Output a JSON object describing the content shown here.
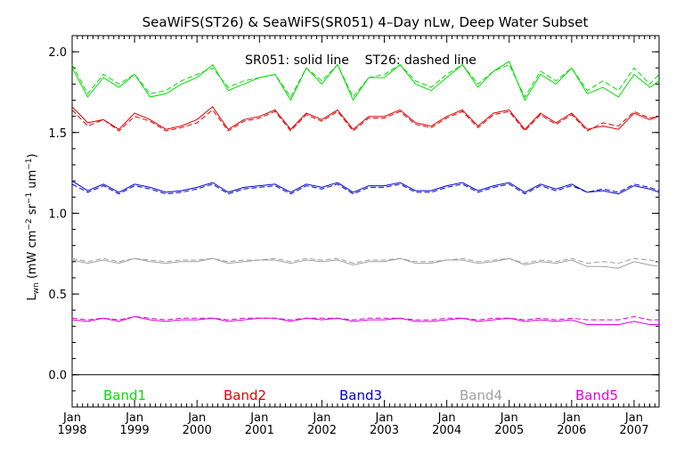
{
  "chart_data": {
    "type": "line",
    "title": "SeaWiFS(ST26) & SeaWiFS(SR051) 4–Day nLw, Deep Water Subset",
    "annotation": "SR051: solid line    ST26: dashed line",
    "ylabel_main": "L",
    "ylabel_sub": "wn",
    "ylabel_rest": " (mW cm",
    "ylabel_exp1": "−2",
    "ylabel_mid1": " sr",
    "ylabel_exp2": "−1",
    "ylabel_mid2": " um",
    "ylabel_exp3": "−1",
    "ylabel_end": ")",
    "xlim": [
      1998.0,
      2007.4
    ],
    "ylim": [
      -0.2,
      2.1
    ],
    "yticks": [
      "0.0",
      "0.5",
      "1.0",
      "1.5",
      "2.0"
    ],
    "ytick_values": [
      0.0,
      0.5,
      1.0,
      1.5,
      2.0
    ],
    "xticks": [
      {
        "month": "Jan",
        "year": "1998",
        "value": 1998
      },
      {
        "month": "Jan",
        "year": "1999",
        "value": 1999
      },
      {
        "month": "Jan",
        "year": "2000",
        "value": 2000
      },
      {
        "month": "Jan",
        "year": "2001",
        "value": 2001
      },
      {
        "month": "Jan",
        "year": "2002",
        "value": 2002
      },
      {
        "month": "Jan",
        "year": "2003",
        "value": 2003
      },
      {
        "month": "Jan",
        "year": "2004",
        "value": 2004
      },
      {
        "month": "Jan",
        "year": "2005",
        "value": 2005
      },
      {
        "month": "Jan",
        "year": "2006",
        "value": 2006
      },
      {
        "month": "Jan",
        "year": "2007",
        "value": 2007
      }
    ],
    "x": [
      1998.0,
      1998.25,
      1998.5,
      1998.75,
      1999.0,
      1999.25,
      1999.5,
      1999.75,
      2000.0,
      2000.25,
      2000.5,
      2000.75,
      2001.0,
      2001.25,
      2001.5,
      2001.75,
      2002.0,
      2002.25,
      2002.5,
      2002.75,
      2003.0,
      2003.25,
      2003.5,
      2003.75,
      2004.0,
      2004.25,
      2004.5,
      2004.75,
      2005.0,
      2005.25,
      2005.5,
      2005.75,
      2006.0,
      2006.25,
      2006.5,
      2006.75,
      2007.0,
      2007.25,
      2007.4
    ],
    "series": [
      {
        "name": "Band1",
        "color": "#00dd00",
        "solid": [
          1.9,
          1.72,
          1.84,
          1.78,
          1.86,
          1.72,
          1.74,
          1.8,
          1.84,
          1.92,
          1.76,
          1.8,
          1.84,
          1.86,
          1.7,
          1.9,
          1.8,
          1.92,
          1.7,
          1.84,
          1.84,
          1.92,
          1.8,
          1.76,
          1.84,
          1.92,
          1.78,
          1.88,
          1.94,
          1.7,
          1.86,
          1.8,
          1.9,
          1.74,
          1.78,
          1.72,
          1.86,
          1.78,
          1.82
        ],
        "dashed": [
          1.92,
          1.74,
          1.86,
          1.8,
          1.86,
          1.74,
          1.76,
          1.82,
          1.86,
          1.9,
          1.78,
          1.82,
          1.84,
          1.86,
          1.72,
          1.9,
          1.82,
          1.92,
          1.72,
          1.84,
          1.86,
          1.92,
          1.82,
          1.78,
          1.86,
          1.92,
          1.8,
          1.88,
          1.92,
          1.72,
          1.88,
          1.82,
          1.9,
          1.76,
          1.82,
          1.76,
          1.9,
          1.8,
          1.86
        ]
      },
      {
        "name": "Band2",
        "color": "#dd0000",
        "solid": [
          1.66,
          1.56,
          1.58,
          1.52,
          1.62,
          1.58,
          1.52,
          1.54,
          1.58,
          1.66,
          1.52,
          1.58,
          1.6,
          1.64,
          1.52,
          1.62,
          1.58,
          1.64,
          1.52,
          1.6,
          1.6,
          1.64,
          1.56,
          1.54,
          1.6,
          1.64,
          1.54,
          1.62,
          1.64,
          1.52,
          1.62,
          1.56,
          1.62,
          1.52,
          1.54,
          1.52,
          1.62,
          1.58,
          1.6
        ],
        "dashed": [
          1.64,
          1.54,
          1.58,
          1.51,
          1.6,
          1.57,
          1.51,
          1.53,
          1.56,
          1.64,
          1.51,
          1.57,
          1.59,
          1.63,
          1.51,
          1.61,
          1.57,
          1.63,
          1.51,
          1.59,
          1.59,
          1.63,
          1.55,
          1.53,
          1.59,
          1.63,
          1.53,
          1.61,
          1.63,
          1.51,
          1.61,
          1.55,
          1.61,
          1.51,
          1.56,
          1.54,
          1.63,
          1.59,
          1.6
        ]
      },
      {
        "name": "Band3",
        "color": "#0000cc",
        "solid": [
          1.2,
          1.14,
          1.18,
          1.13,
          1.18,
          1.16,
          1.13,
          1.14,
          1.16,
          1.19,
          1.13,
          1.16,
          1.17,
          1.18,
          1.13,
          1.18,
          1.16,
          1.19,
          1.13,
          1.17,
          1.17,
          1.19,
          1.14,
          1.14,
          1.17,
          1.19,
          1.14,
          1.17,
          1.19,
          1.13,
          1.18,
          1.15,
          1.18,
          1.13,
          1.14,
          1.12,
          1.17,
          1.15,
          1.13
        ],
        "dashed": [
          1.18,
          1.13,
          1.17,
          1.12,
          1.17,
          1.15,
          1.12,
          1.13,
          1.15,
          1.18,
          1.12,
          1.15,
          1.16,
          1.17,
          1.12,
          1.17,
          1.15,
          1.18,
          1.12,
          1.16,
          1.16,
          1.18,
          1.13,
          1.13,
          1.16,
          1.18,
          1.13,
          1.16,
          1.18,
          1.12,
          1.17,
          1.14,
          1.17,
          1.13,
          1.15,
          1.13,
          1.18,
          1.16,
          1.14
        ]
      },
      {
        "name": "Band4",
        "color": "#a0a0a0",
        "solid": [
          0.71,
          0.69,
          0.71,
          0.69,
          0.72,
          0.7,
          0.69,
          0.7,
          0.7,
          0.72,
          0.69,
          0.7,
          0.71,
          0.71,
          0.69,
          0.71,
          0.7,
          0.71,
          0.68,
          0.7,
          0.7,
          0.72,
          0.69,
          0.69,
          0.71,
          0.71,
          0.69,
          0.7,
          0.72,
          0.68,
          0.7,
          0.69,
          0.71,
          0.67,
          0.67,
          0.66,
          0.7,
          0.68,
          0.67
        ],
        "dashed": [
          0.72,
          0.7,
          0.72,
          0.7,
          0.72,
          0.71,
          0.7,
          0.71,
          0.71,
          0.72,
          0.7,
          0.71,
          0.71,
          0.72,
          0.7,
          0.72,
          0.71,
          0.72,
          0.69,
          0.71,
          0.71,
          0.72,
          0.7,
          0.7,
          0.71,
          0.72,
          0.7,
          0.71,
          0.72,
          0.69,
          0.71,
          0.7,
          0.72,
          0.69,
          0.7,
          0.69,
          0.72,
          0.71,
          0.7
        ]
      },
      {
        "name": "Band5",
        "color": "#dd00dd",
        "solid": [
          0.34,
          0.33,
          0.35,
          0.33,
          0.36,
          0.34,
          0.33,
          0.34,
          0.34,
          0.35,
          0.33,
          0.34,
          0.35,
          0.35,
          0.33,
          0.35,
          0.34,
          0.35,
          0.33,
          0.34,
          0.34,
          0.35,
          0.33,
          0.33,
          0.34,
          0.35,
          0.33,
          0.34,
          0.35,
          0.33,
          0.34,
          0.33,
          0.34,
          0.31,
          0.31,
          0.31,
          0.33,
          0.31,
          0.31
        ],
        "dashed": [
          0.35,
          0.34,
          0.35,
          0.34,
          0.36,
          0.35,
          0.34,
          0.35,
          0.35,
          0.35,
          0.34,
          0.35,
          0.35,
          0.35,
          0.34,
          0.35,
          0.35,
          0.35,
          0.34,
          0.35,
          0.35,
          0.35,
          0.34,
          0.34,
          0.35,
          0.35,
          0.34,
          0.35,
          0.35,
          0.34,
          0.35,
          0.34,
          0.35,
          0.34,
          0.34,
          0.34,
          0.36,
          0.34,
          0.34
        ]
      }
    ],
    "zero_line": true,
    "grid": false
  }
}
